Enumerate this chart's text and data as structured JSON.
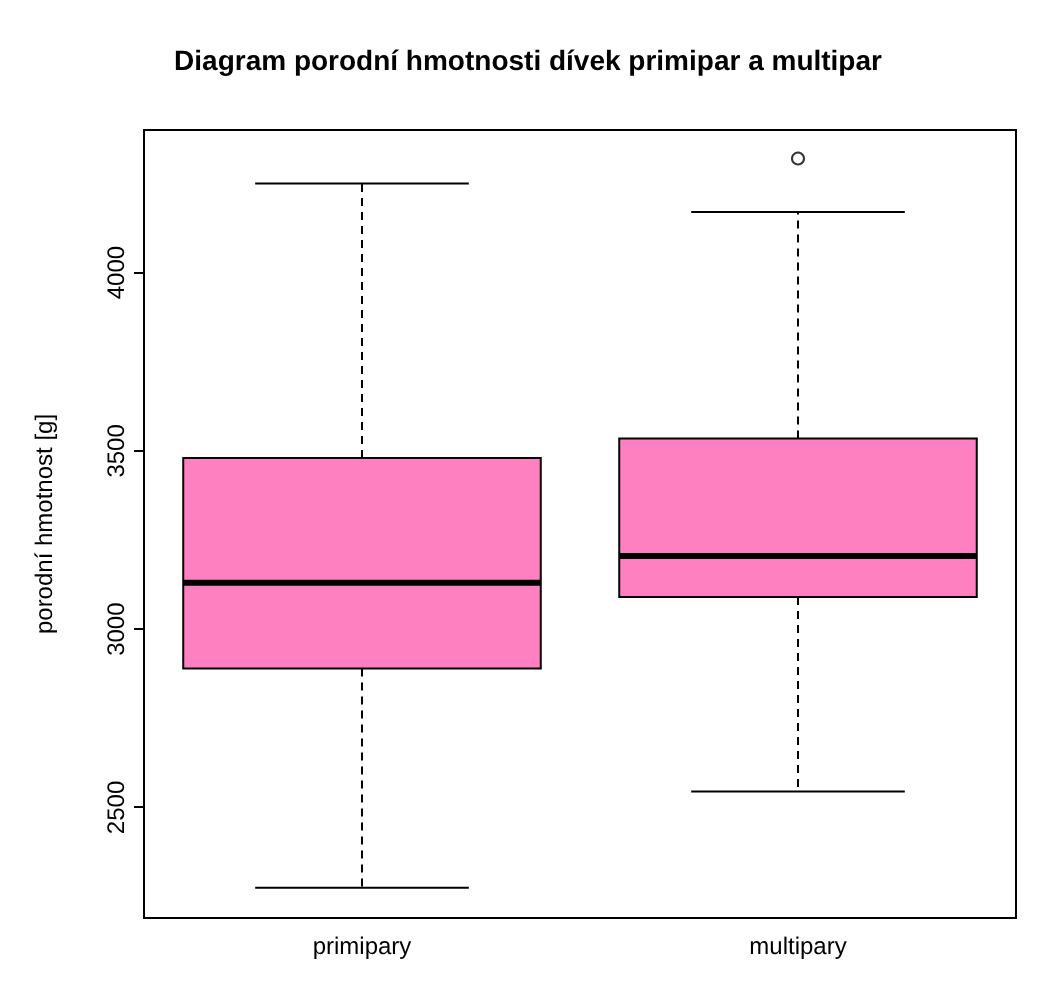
{
  "chart_data": {
    "type": "box",
    "title": "Diagram porodní hmotnosti dívek primipar a multipar",
    "ylabel": "porodní hmotnost [g]",
    "categories": [
      "primipary",
      "multipary"
    ],
    "color": "#ff80c0",
    "boxes": [
      {
        "low": 2275,
        "q1": 2890,
        "median": 3130,
        "q3": 3480,
        "high": 4250
      },
      {
        "low": 2545,
        "q1": 3090,
        "median": 3205,
        "q3": 3535,
        "high": 4170,
        "outliers": [
          4320
        ]
      }
    ],
    "ylim": [
      2190,
      4400
    ],
    "yticks": [
      2500,
      3000,
      3500,
      4000
    ]
  }
}
